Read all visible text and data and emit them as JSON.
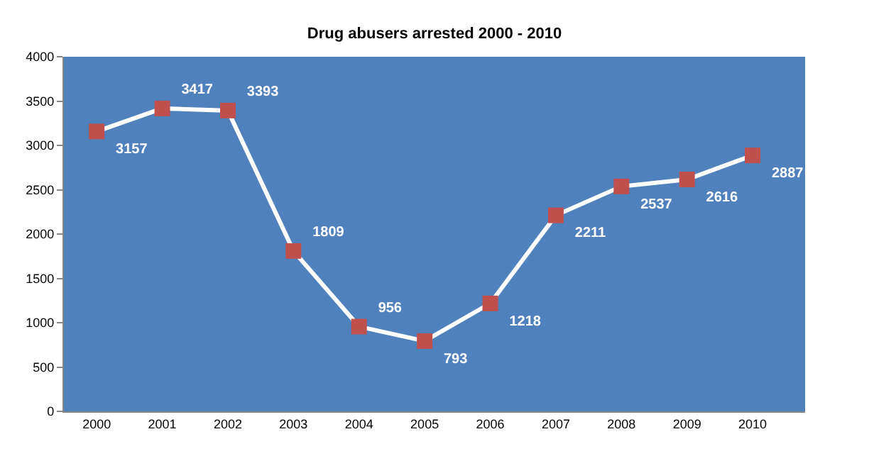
{
  "chart_data": {
    "type": "line",
    "title": "Drug abusers arrested 2000 - 2010",
    "categories": [
      "2000",
      "2001",
      "2002",
      "2003",
      "2004",
      "2005",
      "2006",
      "2007",
      "2008",
      "2009",
      "2010"
    ],
    "series": [
      {
        "color": "#ffffff",
        "values": [
          3157,
          3417,
          3393,
          1809,
          956,
          793,
          1218,
          2211,
          2537,
          2616,
          2887
        ]
      }
    ],
    "ylim": [
      0,
      4000
    ],
    "yticks": [
      0,
      500,
      1000,
      1500,
      2000,
      2500,
      3000,
      3500,
      4000
    ],
    "grid": false,
    "marker": "square",
    "line_style": "solid",
    "data_labels": true
  }
}
